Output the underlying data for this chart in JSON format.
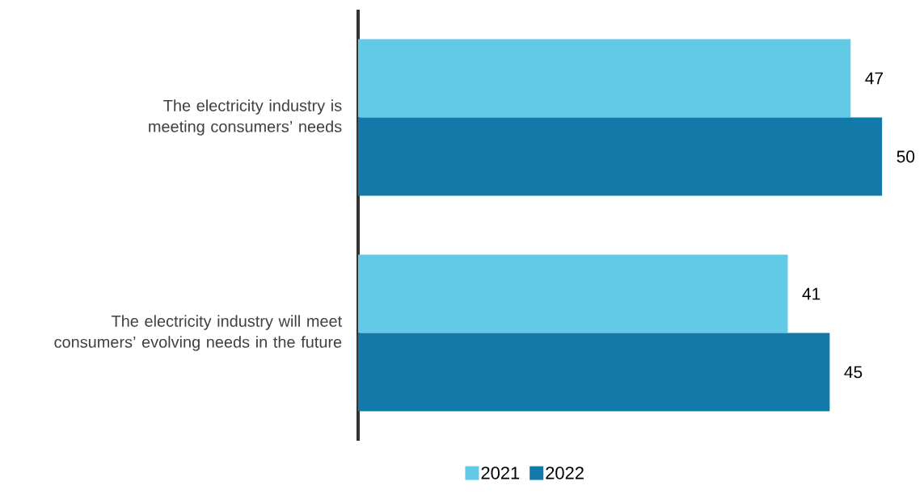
{
  "chart_data": {
    "type": "bar",
    "orientation": "horizontal",
    "categories": [
      "The electricity industry is meeting consumers’ needs",
      "The electricity industry will meet consumers’ evolving needs in the future"
    ],
    "series": [
      {
        "name": "2021",
        "color": "#62cae6",
        "values": [
          47,
          41
        ]
      },
      {
        "name": "2022",
        "color": "#1279a8",
        "values": [
          50,
          45
        ]
      }
    ],
    "data_labels": true,
    "legend": "bottom"
  }
}
